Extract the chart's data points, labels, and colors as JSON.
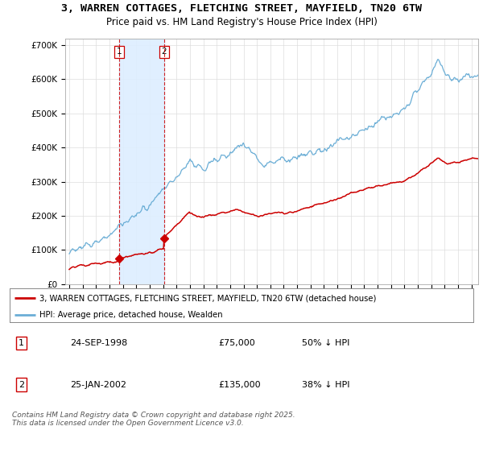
{
  "title": "3, WARREN COTTAGES, FLETCHING STREET, MAYFIELD, TN20 6TW",
  "subtitle": "Price paid vs. HM Land Registry's House Price Index (HPI)",
  "ylim": [
    0,
    720000
  ],
  "yticks": [
    0,
    100000,
    200000,
    300000,
    400000,
    500000,
    600000,
    700000
  ],
  "ytick_labels": [
    "£0",
    "£100K",
    "£200K",
    "£300K",
    "£400K",
    "£500K",
    "£600K",
    "£700K"
  ],
  "hpi_color": "#6baed6",
  "price_color": "#cc0000",
  "vline_color": "#cc0000",
  "shade_color": "#ddeeff",
  "purchase1_date": 1998.73,
  "purchase1_price": 75000,
  "purchase2_date": 2002.07,
  "purchase2_price": 135000,
  "xlim_left": 1994.7,
  "xlim_right": 2025.5,
  "legend_property": "3, WARREN COTTAGES, FLETCHING STREET, MAYFIELD, TN20 6TW (detached house)",
  "legend_hpi": "HPI: Average price, detached house, Wealden",
  "table_rows": [
    [
      "1",
      "24-SEP-1998",
      "£75,000",
      "50% ↓ HPI"
    ],
    [
      "2",
      "25-JAN-2002",
      "£135,000",
      "38% ↓ HPI"
    ]
  ],
  "footnote": "Contains HM Land Registry data © Crown copyright and database right 2025.\nThis data is licensed under the Open Government Licence v3.0.",
  "background_color": "#ffffff",
  "grid_color": "#dddddd"
}
